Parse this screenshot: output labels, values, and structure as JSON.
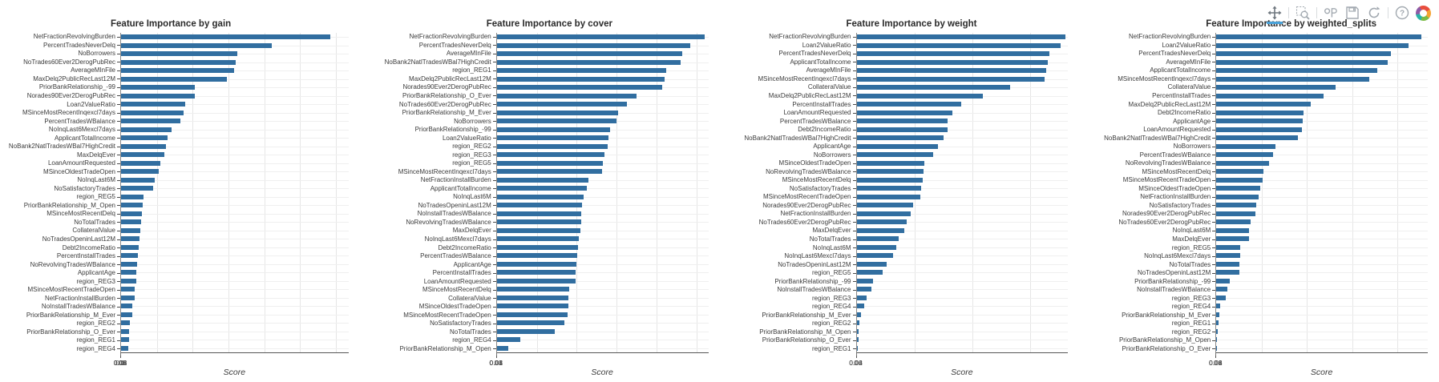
{
  "toolbar": {
    "icons": [
      "pan-icon",
      "box-zoom-icon",
      "wheel-zoom-icon",
      "save-icon",
      "reset-icon",
      "help-icon",
      "bokeh-logo"
    ],
    "active_tool": "pan",
    "accent_color": "#49a2d9"
  },
  "colors": {
    "bar": "#316ea0",
    "grid": "#e6e6e6",
    "axis": "#555555"
  },
  "chart_data": [
    {
      "type": "bar",
      "orientation": "horizontal",
      "title": "Feature Importance by gain",
      "xlabel": "Score",
      "xticks": [
        0,
        0.02,
        0.04,
        0.06,
        0.08,
        0.1,
        0.12
      ],
      "xlim": [
        0,
        0.127
      ],
      "grid": true,
      "categories": [
        "NetFractionRevolvingBurden",
        "PercentTradesNeverDelq",
        "NoBorrowers",
        "NoTrades60Ever2DerogPubRec",
        "AverageMInFile",
        "MaxDelq2PublicRecLast12M",
        "PriorBankRelationship_-99",
        "Norades90Ever2DerogPubRec",
        "Loan2ValueRatio",
        "MSinceMostRecentInqexcl7days",
        "PercentTradesWBalance",
        "NoInqLast6Mexcl7days",
        "ApplicantTotalIncome",
        "NoBank2NatlTradesWBal7HighCredit",
        "MaxDelqEver",
        "LoanAmountRequested",
        "MSinceOldestTradeOpen",
        "NoInqLast6M",
        "NoSatisfactoryTrades",
        "region_REG5",
        "PriorBankRelationship_M_Open",
        "MSinceMostRecentDelq",
        "NoTotalTrades",
        "CollateralValue",
        "NoTradesOpeninLast12M",
        "Debt2IncomeRatio",
        "PercentInstallTrades",
        "NoRevolvingTradesWBalance",
        "ApplicantAge",
        "region_REG3",
        "MSinceMostRecentTradeOpen",
        "NetFractionInstallBurden",
        "NoInstallTradesWBalance",
        "PriorBankRelationship_M_Ever",
        "region_REG2",
        "PriorBankRelationship_O_Ever",
        "region_REG1",
        "region_REG4"
      ],
      "values": [
        0.117,
        0.084,
        0.065,
        0.064,
        0.063,
        0.059,
        0.041,
        0.041,
        0.036,
        0.035,
        0.033,
        0.028,
        0.026,
        0.025,
        0.024,
        0.022,
        0.021,
        0.019,
        0.018,
        0.0125,
        0.012,
        0.0115,
        0.011,
        0.0106,
        0.0105,
        0.01,
        0.0093,
        0.0088,
        0.0085,
        0.0083,
        0.0076,
        0.0074,
        0.0063,
        0.0062,
        0.0048,
        0.0045,
        0.0043,
        0.0042
      ]
    },
    {
      "type": "bar",
      "orientation": "horizontal",
      "title": "Feature Importance by cover",
      "xlabel": "Score",
      "xticks": [
        0,
        0.01,
        0.02,
        0.03,
        0.04,
        0.05
      ],
      "xlim": [
        0,
        0.053
      ],
      "grid": true,
      "categories": [
        "NetFractionRevolvingBurden",
        "PercentTradesNeverDelq",
        "AverageMInFile",
        "NoBank2NatlTradesWBal7HighCredit",
        "region_REG1",
        "MaxDelq2PublicRecLast12M",
        "Norades90Ever2DerogPubRec",
        "PriorBankRelationship_O_Ever",
        "NoTrades60Ever2DerogPubRec",
        "PriorBankRelationship_M_Ever",
        "NoBorrowers",
        "PriorBankRelationship_-99",
        "Loan2ValueRatio",
        "region_REG2",
        "region_REG3",
        "region_REG5",
        "MSinceMostRecentInqexcl7days",
        "NetFractionInstallBurden",
        "ApplicantTotalIncome",
        "NoInqLast6M",
        "NoTradesOpeninLast12M",
        "NoInstallTradesWBalance",
        "NoRevolvingTradesWBalance",
        "MaxDelqEver",
        "NoInqLast6Mexcl7days",
        "Debt2IncomeRatio",
        "PercentTradesWBalance",
        "ApplicantAge",
        "PercentInstallTrades",
        "LoanAmountRequested",
        "MSinceMostRecentDelq",
        "CollateralValue",
        "MSinceOldestTradeOpen",
        "MSinceMostRecentTradeOpen",
        "NoSatisfactoryTrades",
        "NoTotalTrades",
        "region_REG4",
        "PriorBankRelationship_M_Open"
      ],
      "values": [
        0.052,
        0.0485,
        0.0465,
        0.046,
        0.0425,
        0.042,
        0.0415,
        0.035,
        0.0327,
        0.0304,
        0.03,
        0.0284,
        0.028,
        0.0278,
        0.027,
        0.0266,
        0.0263,
        0.023,
        0.0225,
        0.0218,
        0.0213,
        0.0212,
        0.0211,
        0.021,
        0.0205,
        0.0203,
        0.0201,
        0.0199,
        0.0198,
        0.0197,
        0.0182,
        0.018,
        0.0179,
        0.0177,
        0.0169,
        0.0146,
        0.0058,
        0.0029
      ]
    },
    {
      "type": "bar",
      "orientation": "horizontal",
      "title": "Feature Importance by weight",
      "xlabel": "Score",
      "xticks": [
        0,
        0.02,
        0.04,
        0.06
      ],
      "xlim": [
        0,
        0.073
      ],
      "grid": true,
      "categories": [
        "NetFractionRevolvingBurden",
        "Loan2ValueRatio",
        "PercentTradesNeverDelq",
        "ApplicantTotalIncome",
        "AverageMInFile",
        "MSinceMostRecentInqexcl7days",
        "CollateralValue",
        "MaxDelq2PublicRecLast12M",
        "PercentInstallTrades",
        "LoanAmountRequested",
        "PercentTradesWBalance",
        "Debt2IncomeRatio",
        "NoBank2NatlTradesWBal7HighCredit",
        "ApplicantAge",
        "NoBorrowers",
        "MSinceOldestTradeOpen",
        "NoRevolvingTradesWBalance",
        "MSinceMostRecentDelq",
        "NoSatisfactoryTrades",
        "MSinceMostRecentTradeOpen",
        "Norades90Ever2DerogPubRec",
        "NetFractionInstallBurden",
        "NoTrades60Ever2DerogPubRec",
        "MaxDelqEver",
        "NoTotalTrades",
        "NoInqLast6M",
        "NoInqLast6Mexcl7days",
        "NoTradesOpeninLast12M",
        "region_REG5",
        "PriorBankRelationship_-99",
        "NoInstallTradesWBalance",
        "region_REG3",
        "region_REG4",
        "PriorBankRelationship_M_Ever",
        "region_REG2",
        "PriorBankRelationship_M_Open",
        "PriorBankRelationship_O_Ever",
        "region_REG1"
      ],
      "values": [
        0.072,
        0.0705,
        0.0665,
        0.066,
        0.0655,
        0.065,
        0.053,
        0.0437,
        0.036,
        0.033,
        0.0315,
        0.0314,
        0.03,
        0.028,
        0.0265,
        0.0235,
        0.023,
        0.0228,
        0.0223,
        0.022,
        0.0194,
        0.0186,
        0.0174,
        0.0166,
        0.0146,
        0.0137,
        0.0126,
        0.0103,
        0.0091,
        0.0057,
        0.0051,
        0.0034,
        0.0026,
        0.0014,
        0.0011,
        0.0007,
        0.0006,
        0.0005
      ]
    },
    {
      "type": "bar",
      "orientation": "horizontal",
      "title": "Feature Importance by weighted_splits",
      "xlabel": "Score",
      "xticks": [
        0,
        0.02,
        0.04,
        0.06,
        0.08
      ],
      "xlim": [
        0,
        0.0935
      ],
      "grid": true,
      "categories": [
        "NetFractionRevolvingBurden",
        "Loan2ValueRatio",
        "PercentTradesNeverDelq",
        "AverageMInFile",
        "ApplicantTotalIncome",
        "MSinceMostRecentInqexcl7days",
        "CollateralValue",
        "PercentInstallTrades",
        "MaxDelq2PublicRecLast12M",
        "Debt2IncomeRatio",
        "ApplicantAge",
        "LoanAmountRequested",
        "NoBank2NatlTradesWBal7HighCredit",
        "NoBorrowers",
        "PercentTradesWBalance",
        "NoRevolvingTradesWBalance",
        "MSinceMostRecentDelq",
        "MSinceMostRecentTradeOpen",
        "MSinceOldestTradeOpen",
        "NetFractionInstallBurden",
        "NoSatisfactoryTrades",
        "Norades90Ever2DerogPubRec",
        "NoTrades60Ever2DerogPubRec",
        "NoInqLast6M",
        "MaxDelqEver",
        "region_REG5",
        "NoInqLast6Mexcl7days",
        "NoTotalTrades",
        "NoTradesOpeninLast12M",
        "PriorBankRelationship_-99",
        "NoInstallTradesWBalance",
        "region_REG3",
        "region_REG4",
        "PriorBankRelationship_M_Ever",
        "region_REG1",
        "region_REG2",
        "PriorBankRelationship_M_Open",
        "PriorBankRelationship_O_Ever"
      ],
      "values": [
        0.0907,
        0.085,
        0.0773,
        0.0757,
        0.071,
        0.0677,
        0.0527,
        0.0473,
        0.0417,
        0.0387,
        0.0383,
        0.0377,
        0.036,
        0.026,
        0.025,
        0.0233,
        0.021,
        0.0206,
        0.0193,
        0.0187,
        0.0177,
        0.0174,
        0.015,
        0.0145,
        0.0143,
        0.0107,
        0.0104,
        0.0103,
        0.0102,
        0.006,
        0.005,
        0.004,
        0.0017,
        0.0012,
        0.0009,
        0.0007,
        0.0004,
        0.0004
      ]
    }
  ]
}
